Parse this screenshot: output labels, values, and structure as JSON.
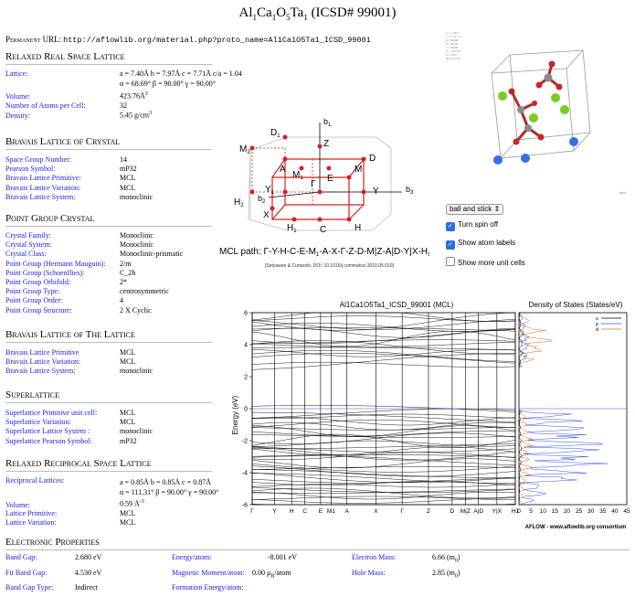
{
  "title": {
    "main": "Al",
    "s1": "1",
    "a2": "Ca",
    "s2": "1",
    "a3": "O",
    "s3": "5",
    "a4": "Ta",
    "s4": "1",
    "rest": " (ICSD# 99001)"
  },
  "permalink": {
    "label": "Permanent URL:",
    "url": "http://aflowlib.org/material.php?proto_name=Al1Ca1O5Ta1_ICSD_99001"
  },
  "sections": {
    "real_lattice": "Relaxed Real Space Lattice",
    "bravais_crystal": "Bravais Lattice of Crystal",
    "point_group": "Point Group Crystal",
    "bravais_lattice": "Bravais Lattice of The Lattice",
    "superlattice": "Superlattice",
    "reciprocal": "Relaxed Reciprocal Space Lattice",
    "electronic": "Electronic Properties"
  },
  "real_lattice": {
    "lattice_label": "Lattice:",
    "lattice_line1": "a = 7.40Å  b = 7.97Å  c = 7.71Å  c/a = 1.04",
    "lattice_line2": "α = 68.69° β = 90.00° γ = 90.00°",
    "volume_label": "Volume:",
    "volume_value": "423.76Å",
    "volume_exp": "3",
    "atoms_label": "Number of Atoms per Cell:",
    "atoms_value": "32",
    "density_label": "Density:",
    "density_value": "5.45 g/cm",
    "density_exp": "3"
  },
  "bravais_crystal": [
    {
      "label": "Space Group Number:",
      "value": "14"
    },
    {
      "label": "Pearson Symbol:",
      "value": "mP32"
    },
    {
      "label": "Bravais Lattice Primitive:",
      "value": "MCL"
    },
    {
      "label": "Bravais Lattice Variation:",
      "value": "MCL"
    },
    {
      "label": "Bravais Lattice System:",
      "value": "monoclinic"
    }
  ],
  "point_group": [
    {
      "label": "Crystal Family:",
      "value": "Monoclinic"
    },
    {
      "label": "Crystal System:",
      "value": "Monoclinic"
    },
    {
      "label": "Crystal Class:",
      "value": "Monoclinic-prismatic"
    },
    {
      "label": "Point Group (Hermann Mauguin):",
      "value": "2/m"
    },
    {
      "label": "Point Group (Schoenflies):",
      "value": "C_2h"
    },
    {
      "label": "Point Group Orbifold:",
      "value": "2*"
    },
    {
      "label": "Point Group Type:",
      "value": "centrosymmetric"
    },
    {
      "label": "Point Group Order:",
      "value": "4"
    },
    {
      "label": "Point Group Structure:",
      "value": "2 X Cyclic"
    }
  ],
  "bravais_lattice": [
    {
      "label": "Bravais Lattice Primitive",
      "value": "MCL"
    },
    {
      "label": "Bravais Lattice Variation:",
      "value": "MCL"
    },
    {
      "label": "Bravais Lattice System:",
      "value": "monoclinic"
    }
  ],
  "superlattice": [
    {
      "label": "Superlattice Primitive unit cell:",
      "value": "MCL"
    },
    {
      "label": "Superlattice Variation:",
      "value": "MCL"
    },
    {
      "label": "Superlattice Lattice System :",
      "value": "monoclinic"
    },
    {
      "label": "Superlattice Pearson Symbol:",
      "value": "mP32"
    }
  ],
  "reciprocal": {
    "lattices_label": "Reciprocal Lattices:",
    "line1": "a = 0.85Å   b = 0.85Å  c = 0.87Å",
    "line2": "α = 111.31° β = 90.00° γ = 90.00°",
    "volume_label": "Volume:",
    "volume_value": "0.59 Å",
    "volume_exp": "-3",
    "primitive_label": "Lattice Primitive:",
    "primitive_value": "MCL",
    "variation_label": "Lattice Variation:",
    "variation_value": "MCL"
  },
  "electronic": {
    "band_gap_label": "Band Gap:",
    "band_gap_value": "2.680 eV",
    "fit_gap_label": "Fit Band Gap:",
    "fit_gap_value": "4.530 eV",
    "gap_type_label": "Band Gap Type:",
    "gap_type_value": "Indirect",
    "energy_label": "Energy/atom:",
    "energy_value": "-8.001 eV",
    "magnetic_label": "Magnetic Moment/atom:",
    "magnetic_value": "0.00 μ",
    "magnetic_sub": "B",
    "magnetic_unit": "/atom",
    "formation_label": "Formation Energy/atom:",
    "electron_label": "Electron Mass:",
    "electron_value": "6.66 (m",
    "electron_sub": "0",
    "electron_end": ")",
    "hole_label": "Hole Mass:",
    "hole_value": "2.85 (m",
    "hole_sub": "0",
    "hole_end": ")"
  },
  "viewer": {
    "mode_select": "ball and stick",
    "spin_label": "Turn spin off",
    "spin_checked": true,
    "labels_label": "Show atom labels",
    "labels_checked": true,
    "cells_label": "Show more unit cells",
    "cells_checked": false,
    "jmol_tag": "jmol",
    "atom_colors": {
      "red": "#c0282a",
      "green": "#7acc22",
      "blue": "#3a6ee8",
      "gray": "#8a8a8a"
    }
  },
  "brillouin": {
    "axis_b1": "b",
    "axis_b1_sub": "1",
    "axis_b2": "b",
    "axis_b2_sub": "2",
    "axis_b3": "b",
    "axis_b3_sub": "3",
    "points": [
      {
        "name": "M",
        "sub": "2"
      },
      {
        "name": "D",
        "sub": "1"
      },
      {
        "name": "Z",
        "sub": ""
      },
      {
        "name": "D",
        "sub": ""
      },
      {
        "name": "A",
        "sub": ""
      },
      {
        "name": "M",
        "sub": "1"
      },
      {
        "name": "E",
        "sub": ""
      },
      {
        "name": "M",
        "sub": ""
      },
      {
        "name": "Y",
        "sub": "1"
      },
      {
        "name": "Γ",
        "sub": ""
      },
      {
        "name": "Y",
        "sub": ""
      },
      {
        "name": "H",
        "sub": "2"
      },
      {
        "name": "X",
        "sub": ""
      },
      {
        "name": "H",
        "sub": "1"
      },
      {
        "name": "C",
        "sub": ""
      },
      {
        "name": "H",
        "sub": ""
      }
    ],
    "path_label": "MCL path: Γ-Y-H-C-E-M",
    "path_sub": "1",
    "path_rest": "-A-X-Γ-Z-D-M|Z-A|D-Y|X-H",
    "path_sub2": "1",
    "citation": "[Setyawan & Curtarolo, DOI: 10.1016/j.commatsci.2010.05.010]"
  },
  "chart_data": [
    {
      "type": "line",
      "title": "Al1Ca1O5Ta1_ICSD_99001 (MCL)",
      "ylabel": "Energy (eV)",
      "ylim": [
        -6,
        6
      ],
      "yticks": [
        -6,
        -4,
        -2,
        0,
        2,
        4,
        6
      ],
      "x_tick_labels": [
        "Γ",
        "Y",
        "H",
        "C",
        "E",
        "M1",
        "A",
        "X",
        "Γ",
        "Z",
        "D",
        "M|Z",
        "A|D",
        "Y|X",
        "H1"
      ],
      "fermi_level": 0,
      "note": "band curves are densely packed: valence bands between about -6 and 0 eV, conduction bands between about 2.7 and 6 eV"
    },
    {
      "type": "line",
      "title": "Density of States (States/eV)",
      "xlim": [
        0,
        45
      ],
      "xticks": [
        0,
        5,
        10,
        15,
        20,
        25,
        30,
        35,
        40,
        45
      ],
      "legend": [
        "s",
        "p",
        "d"
      ],
      "legend_colors": [
        "#000000",
        "#3355dd",
        "#e86420"
      ],
      "footer": "AFLOW - www.aflowlib.org consortium"
    }
  ],
  "tiny_text": [
    "a = 7.40 b",
    "c = 7.71 c/a",
    "α = 68.69",
    "β = 90.00",
    "γ = 90.00",
    "V = 423.76",
    "ρ = 5.45",
    "Al Ca O Ta"
  ]
}
